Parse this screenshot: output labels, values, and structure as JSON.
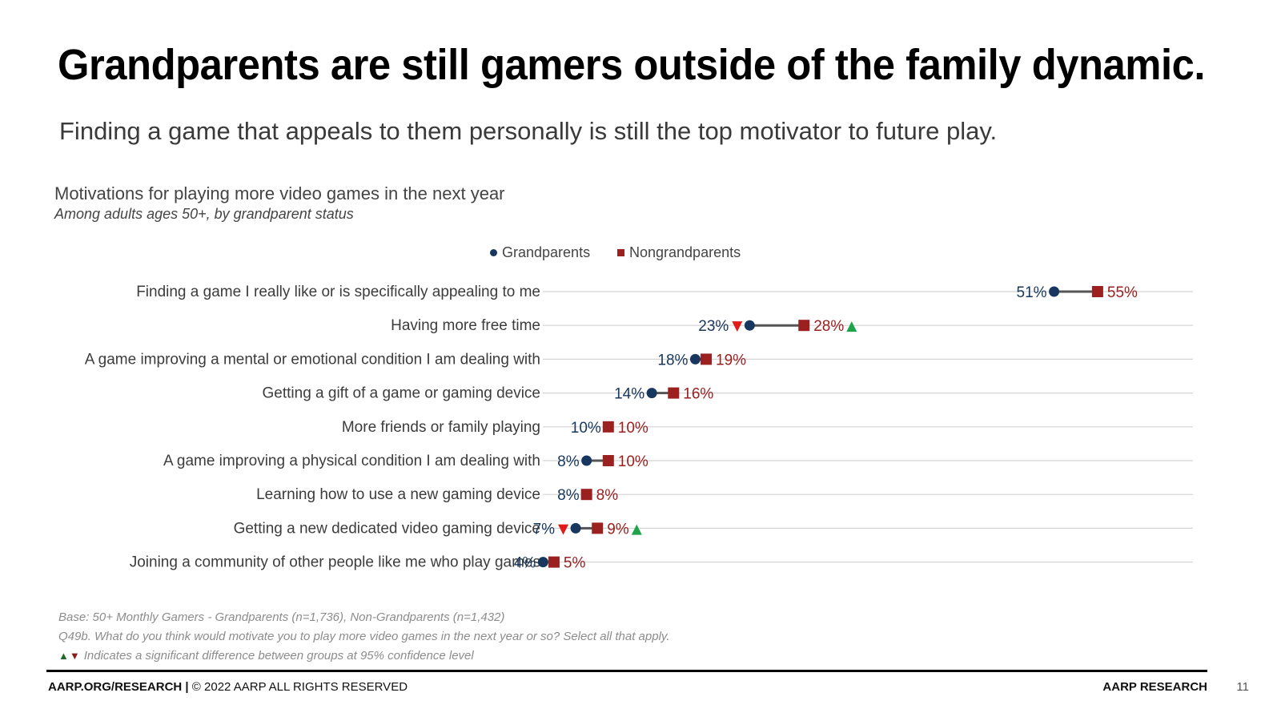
{
  "slide": {
    "title": "Grandparents are still gamers outside of the family dynamic.",
    "subtitle": "Finding a game that appeals to them personally is still the top motivator to future play."
  },
  "chart_data": {
    "type": "dot-dumbbell",
    "title": "Motivations for playing more video games in the next year",
    "subtitle": "Among adults ages 50+, by grandparent status",
    "legend": [
      {
        "name": "Grandparents",
        "color": "#17375e",
        "marker": "circle"
      },
      {
        "name": "Nongrandparents",
        "color": "#9b2020",
        "marker": "square"
      }
    ],
    "xlim": [
      0,
      60
    ],
    "categories": [
      "Finding a game I really like or is specifically appealing to me",
      "Having more free time",
      "A game improving a mental or emotional condition I am dealing with",
      "Getting a gift of a game or gaming device",
      "More friends or family playing",
      "A game improving a physical condition I am dealing with",
      "Learning how to use a new gaming device",
      "Getting a new dedicated video gaming device",
      "Joining a community of other people like me who play games"
    ],
    "series": [
      {
        "name": "Grandparents",
        "values": [
          51,
          23,
          18,
          14,
          10,
          8,
          8,
          7,
          4
        ],
        "labels": [
          "51%",
          "23%",
          "18%",
          "14%",
          "10%",
          "8%",
          "8%",
          "7%",
          "4%"
        ],
        "significance": [
          "",
          "down",
          "",
          "",
          "",
          "",
          "",
          "down",
          ""
        ]
      },
      {
        "name": "Nongrandparents",
        "values": [
          55,
          28,
          19,
          16,
          10,
          10,
          8,
          9,
          5
        ],
        "labels": [
          "55%",
          "28%",
          "19%",
          "16%",
          "10%",
          "10%",
          "8%",
          "9%",
          "5%"
        ],
        "significance": [
          "",
          "up",
          "",
          "",
          "",
          "",
          "",
          "up",
          ""
        ]
      }
    ],
    "notes": [
      "Base: 50+ Monthly Gamers - Grandparents (n=1,736), Non-Grandparents (n=1,432)",
      "Q49b. What do you think would motivate you to play more video games in the next year or so? Select all that apply.",
      "Indicates a significant difference between groups at 95% confidence level"
    ],
    "colors": {
      "grand": "#17375e",
      "nongrand": "#9b2020",
      "up": "#1fa34a",
      "down": "#e01b1b",
      "grid": "#d4d4d4",
      "connector": "#555555"
    }
  },
  "footer": {
    "org": "AARP.ORG/RESEARCH",
    "separator": " | ",
    "rights": "© 2022 AARP ALL RIGHTS RESERVED",
    "brand": "AARP RESEARCH",
    "page": "11"
  }
}
